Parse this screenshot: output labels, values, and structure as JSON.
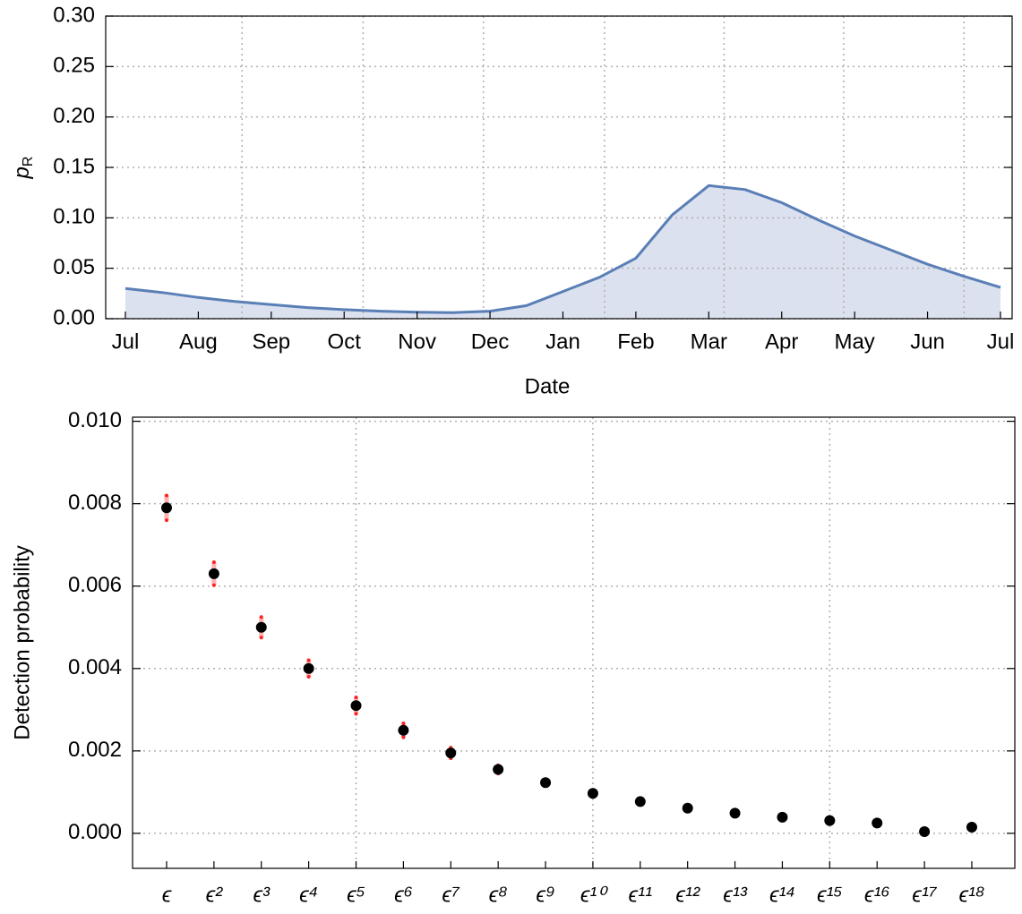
{
  "chart_data": [
    {
      "type": "area",
      "xlabel": "Date",
      "ylabel": {
        "main": "p",
        "sub": "R"
      },
      "xticks": [
        {
          "value": 0,
          "label": "Jul"
        },
        {
          "value": 1,
          "label": "Aug"
        },
        {
          "value": 2,
          "label": "Sep"
        },
        {
          "value": 3,
          "label": "Oct"
        },
        {
          "value": 4,
          "label": "Nov"
        },
        {
          "value": 5,
          "label": "Dec"
        },
        {
          "value": 6,
          "label": "Jan"
        },
        {
          "value": 7,
          "label": "Feb"
        },
        {
          "value": 8,
          "label": "Mar"
        },
        {
          "value": 9,
          "label": "Apr"
        },
        {
          "value": 10,
          "label": "May"
        },
        {
          "value": 11,
          "label": "Jun"
        },
        {
          "value": 12,
          "label": "Jul"
        }
      ],
      "xlim": [
        -0.27,
        12.16
      ],
      "xgrid": [
        1.6,
        3.26,
        4.91,
        6.57,
        8.21,
        9.85,
        11.5
      ],
      "ylim": [
        0,
        0.3
      ],
      "yticks": [
        {
          "value": 0,
          "label": "0.00"
        },
        {
          "value": 0.05,
          "label": "0.05"
        },
        {
          "value": 0.1,
          "label": "0.10"
        },
        {
          "value": 0.15,
          "label": "0.15"
        },
        {
          "value": 0.2,
          "label": "0.20"
        },
        {
          "value": 0.25,
          "label": "0.25"
        },
        {
          "value": 0.3,
          "label": "0.30"
        }
      ],
      "grid": true,
      "series": [
        {
          "color": "#5a7fb6",
          "fill": "#dbe1ee",
          "x": [
            0,
            0.5,
            1,
            1.5,
            2,
            2.5,
            3,
            3.5,
            4,
            4.5,
            5,
            5.5,
            6,
            6.5,
            7,
            7.5,
            8,
            8.5,
            9,
            9.5,
            10,
            10.5,
            11,
            11.5,
            12
          ],
          "values": [
            0.03,
            0.026,
            0.021,
            0.017,
            0.014,
            0.011,
            0.009,
            0.0075,
            0.0065,
            0.006,
            0.0075,
            0.013,
            0.027,
            0.041,
            0.06,
            0.103,
            0.132,
            0.128,
            0.115,
            0.098,
            0.082,
            0.068,
            0.054,
            0.042,
            0.031
          ]
        }
      ]
    },
    {
      "type": "errorbar",
      "ylabel": "Detection probability",
      "categories": [
        "ϵ",
        "ϵ²",
        "ϵ³",
        "ϵ⁴",
        "ϵ⁵",
        "ϵ⁶",
        "ϵ⁷",
        "ϵ⁸",
        "ϵ⁹",
        "ϵ¹⁰",
        "ϵ¹¹",
        "ϵ¹²",
        "ϵ¹³",
        "ϵ¹⁴",
        "ϵ¹⁵",
        "ϵ¹⁶",
        "ϵ¹⁷",
        "ϵ¹⁸"
      ],
      "xgrid": [
        4,
        9,
        14
      ],
      "ylim": [
        -0.00085,
        0.0101
      ],
      "yticks": [
        {
          "value": 0,
          "label": "0.000"
        },
        {
          "value": 0.002,
          "label": "0.002"
        },
        {
          "value": 0.004,
          "label": "0.004"
        },
        {
          "value": 0.006,
          "label": "0.006"
        },
        {
          "value": 0.008,
          "label": "0.008"
        },
        {
          "value": 0.01,
          "label": "0.010"
        }
      ],
      "grid": true,
      "color": "#000000",
      "error_color": "#ff2020",
      "values": [
        0.0079,
        0.0063,
        0.005,
        0.004,
        0.0031,
        0.0025,
        0.00195,
        0.00155,
        0.00123,
        0.00097,
        0.00077,
        0.00061,
        0.00049,
        0.00039,
        0.00031,
        0.00025,
        4e-05,
        0.00015
      ],
      "errors": [
        0.0003,
        0.00028,
        0.00025,
        0.0002,
        0.0002,
        0.00017,
        0.00013,
        0.0001,
        8e-05,
        6e-05,
        5e-05,
        4e-05,
        4e-05,
        3e-05,
        3e-05,
        3e-05,
        2e-05,
        2e-05
      ]
    }
  ]
}
